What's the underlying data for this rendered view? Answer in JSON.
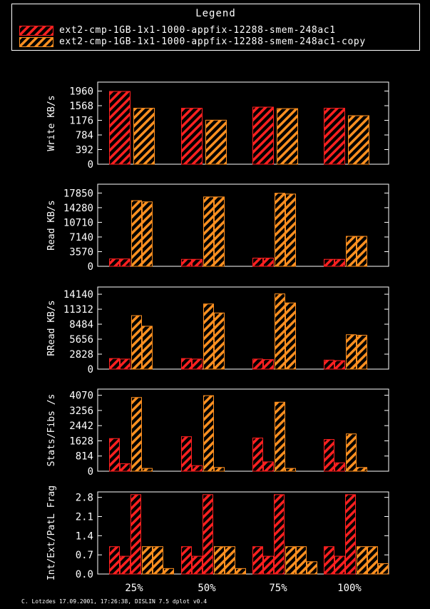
{
  "legend": {
    "title": "Legend",
    "series": [
      {
        "name": "ext2-cmp-1GB-1x1-1000-appfix-12288-smem-248ac1",
        "color": "#ff2020"
      },
      {
        "name": "ext2-cmp-1GB-1x1-1000-appfix-12288-smem-248ac1-copy",
        "color": "#ff9020"
      }
    ]
  },
  "footer": "C. Lotzdes 17.09.2001, 17:26:38, DISLIN 7.5 dplot v0.4",
  "chart_data": {
    "type": "bar",
    "categories": [
      "25%",
      "50%",
      "75%",
      "100%"
    ],
    "panels": [
      {
        "ylabel": "Write KB/s",
        "ylim": [
          0,
          2200
        ],
        "ticks": [
          "0",
          "392",
          "784",
          "1176",
          "1568",
          "1960"
        ],
        "tick_values": [
          0,
          392,
          784,
          1176,
          1568,
          1960
        ],
        "bars": [
          [
            [
              1950
            ],
            [
              1500
            ]
          ],
          [
            [
              1500
            ],
            [
              1180
            ]
          ],
          [
            [
              1530
            ],
            [
              1490
            ]
          ],
          [
            [
              1500
            ],
            [
              1300
            ]
          ]
        ]
      },
      {
        "ylabel": "Read KB/s",
        "ylim": [
          0,
          20000
        ],
        "ticks": [
          "0",
          "3570",
          "7140",
          "10710",
          "14280",
          "17850"
        ],
        "tick_values": [
          0,
          3570,
          7140,
          10710,
          14280,
          17850
        ],
        "bars": [
          [
            [
              1800,
              1800
            ],
            [
              16000,
              15700
            ]
          ],
          [
            [
              1700,
              1700
            ],
            [
              16900,
              16900
            ]
          ],
          [
            [
              2000,
              2000
            ],
            [
              17800,
              17600
            ]
          ],
          [
            [
              1700,
              1700
            ],
            [
              7300,
              7300
            ]
          ]
        ]
      },
      {
        "ylabel": "RRead KB/s",
        "ylim": [
          0,
          15500
        ],
        "ticks": [
          "0",
          "2828",
          "5656",
          "8484",
          "11312",
          "14140"
        ],
        "tick_values": [
          0,
          2828,
          5656,
          8484,
          11312,
          14140
        ],
        "bars": [
          [
            [
              2000,
              1900
            ],
            [
              10100,
              8100
            ]
          ],
          [
            [
              2000,
              1900
            ],
            [
              12300,
              10600
            ]
          ],
          [
            [
              1900,
              1800
            ],
            [
              14200,
              12500
            ]
          ],
          [
            [
              1700,
              1600
            ],
            [
              6500,
              6400
            ]
          ]
        ]
      },
      {
        "ylabel": "Stats/Fibs /s",
        "ylim": [
          0,
          4400
        ],
        "ticks": [
          "0",
          "814",
          "1628",
          "2442",
          "3256",
          "4070"
        ],
        "tick_values": [
          0,
          814,
          1628,
          2442,
          3256,
          4070
        ],
        "bars": [
          [
            [
              1750,
              400
            ],
            [
              3950,
              150
            ]
          ],
          [
            [
              1850,
              300
            ],
            [
              4050,
              200
            ]
          ],
          [
            [
              1780,
              500
            ],
            [
              3700,
              150
            ]
          ],
          [
            [
              1700,
              450
            ],
            [
              2000,
              200
            ]
          ]
        ]
      },
      {
        "ylabel": "Int/Ext/PatL Frag",
        "ylim": [
          0,
          3.0
        ],
        "ticks": [
          "0.0",
          "0.7",
          "1.4",
          "2.1",
          "2.8"
        ],
        "tick_values": [
          0,
          0.7,
          1.4,
          2.1,
          2.8
        ],
        "bars": [
          [
            [
              1.0,
              0.65,
              2.9
            ],
            [
              1.0,
              1.0,
              0.2
            ]
          ],
          [
            [
              1.0,
              0.65,
              2.9
            ],
            [
              1.0,
              1.0,
              0.2
            ]
          ],
          [
            [
              1.0,
              0.65,
              2.9
            ],
            [
              1.0,
              1.0,
              0.45
            ]
          ],
          [
            [
              1.0,
              0.65,
              2.9
            ],
            [
              1.0,
              1.0,
              0.38
            ]
          ]
        ]
      }
    ]
  }
}
